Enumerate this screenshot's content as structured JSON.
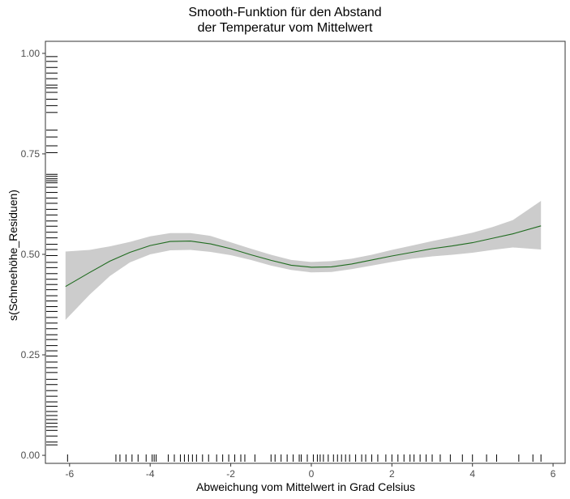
{
  "chart_data": {
    "type": "line",
    "title": [
      "Smooth-Funktion für den Abstand",
      "der Temperatur vom Mittelwert"
    ],
    "xlabel": "Abweichung vom Mittelwert in Grad Celsius",
    "ylabel": "s(Schneehöhe_Residuen)",
    "xlim": [
      -6.6,
      6.3
    ],
    "ylim": [
      -0.02,
      1.03
    ],
    "x_ticks": [
      -6,
      -4,
      -2,
      0,
      2,
      4,
      6
    ],
    "x_tick_labels": [
      "-6",
      "-4",
      "-2",
      "0",
      "2",
      "4",
      "6"
    ],
    "y_ticks": [
      0.0,
      0.25,
      0.5,
      0.75,
      1.0
    ],
    "y_tick_labels": [
      "0.00",
      "0.25",
      "0.50",
      "0.75",
      "1.00"
    ],
    "grid": false,
    "series": [
      {
        "color": "#1f6b1f",
        "x": [
          -6.1,
          -5.5,
          -5.0,
          -4.5,
          -4.0,
          -3.5,
          -3.0,
          -2.5,
          -2.0,
          -1.5,
          -1.0,
          -0.5,
          0.0,
          0.5,
          1.0,
          1.5,
          2.0,
          2.5,
          3.0,
          3.5,
          4.0,
          4.5,
          5.0,
          5.7
        ],
        "y": [
          0.42,
          0.455,
          0.483,
          0.505,
          0.522,
          0.532,
          0.533,
          0.526,
          0.514,
          0.499,
          0.485,
          0.473,
          0.468,
          0.469,
          0.476,
          0.486,
          0.496,
          0.505,
          0.514,
          0.521,
          0.529,
          0.54,
          0.551,
          0.571
        ],
        "lower": [
          0.337,
          0.4,
          0.446,
          0.48,
          0.5,
          0.51,
          0.511,
          0.506,
          0.498,
          0.486,
          0.472,
          0.461,
          0.455,
          0.456,
          0.463,
          0.472,
          0.481,
          0.489,
          0.495,
          0.499,
          0.504,
          0.511,
          0.517,
          0.512
        ],
        "upper": [
          0.507,
          0.511,
          0.52,
          0.531,
          0.545,
          0.553,
          0.553,
          0.546,
          0.53,
          0.514,
          0.499,
          0.486,
          0.481,
          0.483,
          0.489,
          0.499,
          0.511,
          0.522,
          0.533,
          0.543,
          0.554,
          0.568,
          0.585,
          0.633
        ]
      }
    ],
    "band_color": "#cccccc",
    "rug_x": [
      -6.05,
      -4.85,
      -4.75,
      -4.6,
      -4.45,
      -4.3,
      -4.1,
      -3.95,
      -3.9,
      -3.85,
      -3.55,
      -3.4,
      -3.25,
      -3.15,
      -3.05,
      -2.95,
      -2.85,
      -2.7,
      -2.55,
      -2.35,
      -2.2,
      -2.05,
      -1.9,
      -1.75,
      -1.65,
      -1.4,
      -1.0,
      -0.9,
      -0.75,
      -0.6,
      -0.45,
      -0.3,
      -0.25,
      -0.1,
      0.05,
      0.15,
      0.22,
      0.3,
      0.42,
      0.55,
      0.65,
      0.75,
      0.85,
      0.95,
      1.1,
      1.25,
      1.35,
      1.5,
      1.65,
      1.85,
      2.0,
      2.15,
      2.3,
      2.45,
      2.55,
      2.7,
      2.85,
      3.0,
      3.2,
      3.45,
      3.75,
      4.0,
      4.35,
      4.6,
      5.15,
      5.5,
      5.7
    ],
    "rug_y": [
      0.026,
      0.033,
      0.048,
      0.062,
      0.071,
      0.08,
      0.089,
      0.099,
      0.109,
      0.122,
      0.133,
      0.147,
      0.161,
      0.176,
      0.189,
      0.206,
      0.218,
      0.232,
      0.247,
      0.26,
      0.273,
      0.288,
      0.3,
      0.315,
      0.329,
      0.343,
      0.358,
      0.37,
      0.384,
      0.397,
      0.412,
      0.425,
      0.438,
      0.452,
      0.467,
      0.48,
      0.497,
      0.512,
      0.525,
      0.541,
      0.555,
      0.57,
      0.583,
      0.598,
      0.612,
      0.627,
      0.64,
      0.654,
      0.667,
      0.678,
      0.683,
      0.688,
      0.694,
      0.699,
      0.753,
      0.77,
      0.792,
      0.809,
      0.853,
      0.87,
      0.886,
      0.903,
      0.914,
      0.921,
      0.937,
      0.951,
      0.965,
      0.98,
      0.992
    ]
  }
}
